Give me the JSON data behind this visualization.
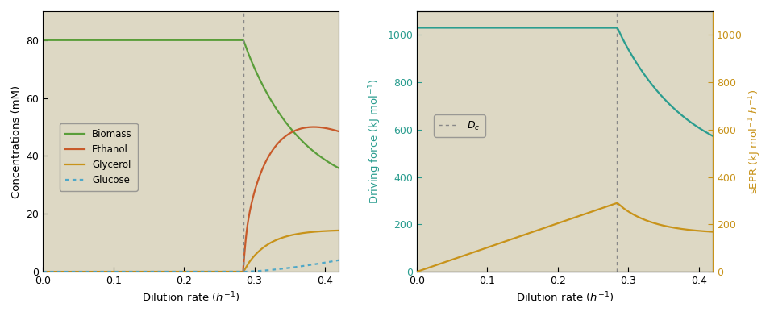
{
  "bg_color": "#ddd8c4",
  "dc": 0.284,
  "xlim": [
    0.0,
    0.42
  ],
  "xticks": [
    0.0,
    0.1,
    0.2,
    0.3,
    0.4
  ],
  "xlabel": "Dilution rate ($h^{-1}$)",
  "left": {
    "ylim": [
      0,
      90
    ],
    "yticks": [
      0,
      20,
      40,
      60,
      80
    ],
    "ylabel": "Concentrations (mM)",
    "biomass_color": "#5a9e3a",
    "ethanol_color": "#c85a2a",
    "glycerol_color": "#c8931a",
    "glucose_color": "#4fa8c8"
  },
  "right": {
    "ylim_left": [
      0,
      1100
    ],
    "ylim_right": [
      0,
      1100
    ],
    "yticks_left": [
      0,
      200,
      400,
      600,
      800,
      1000
    ],
    "yticks_right": [
      0,
      200,
      400,
      600,
      800,
      1000
    ],
    "ylabel_left": "Driving force (kJ mol$^{-1}$)",
    "ylabel_right": "sEPR (kJ mol$^{-1}$ $h^{-1}$)",
    "driving_color": "#2a9d8f",
    "sepr_color": "#c8931a"
  }
}
